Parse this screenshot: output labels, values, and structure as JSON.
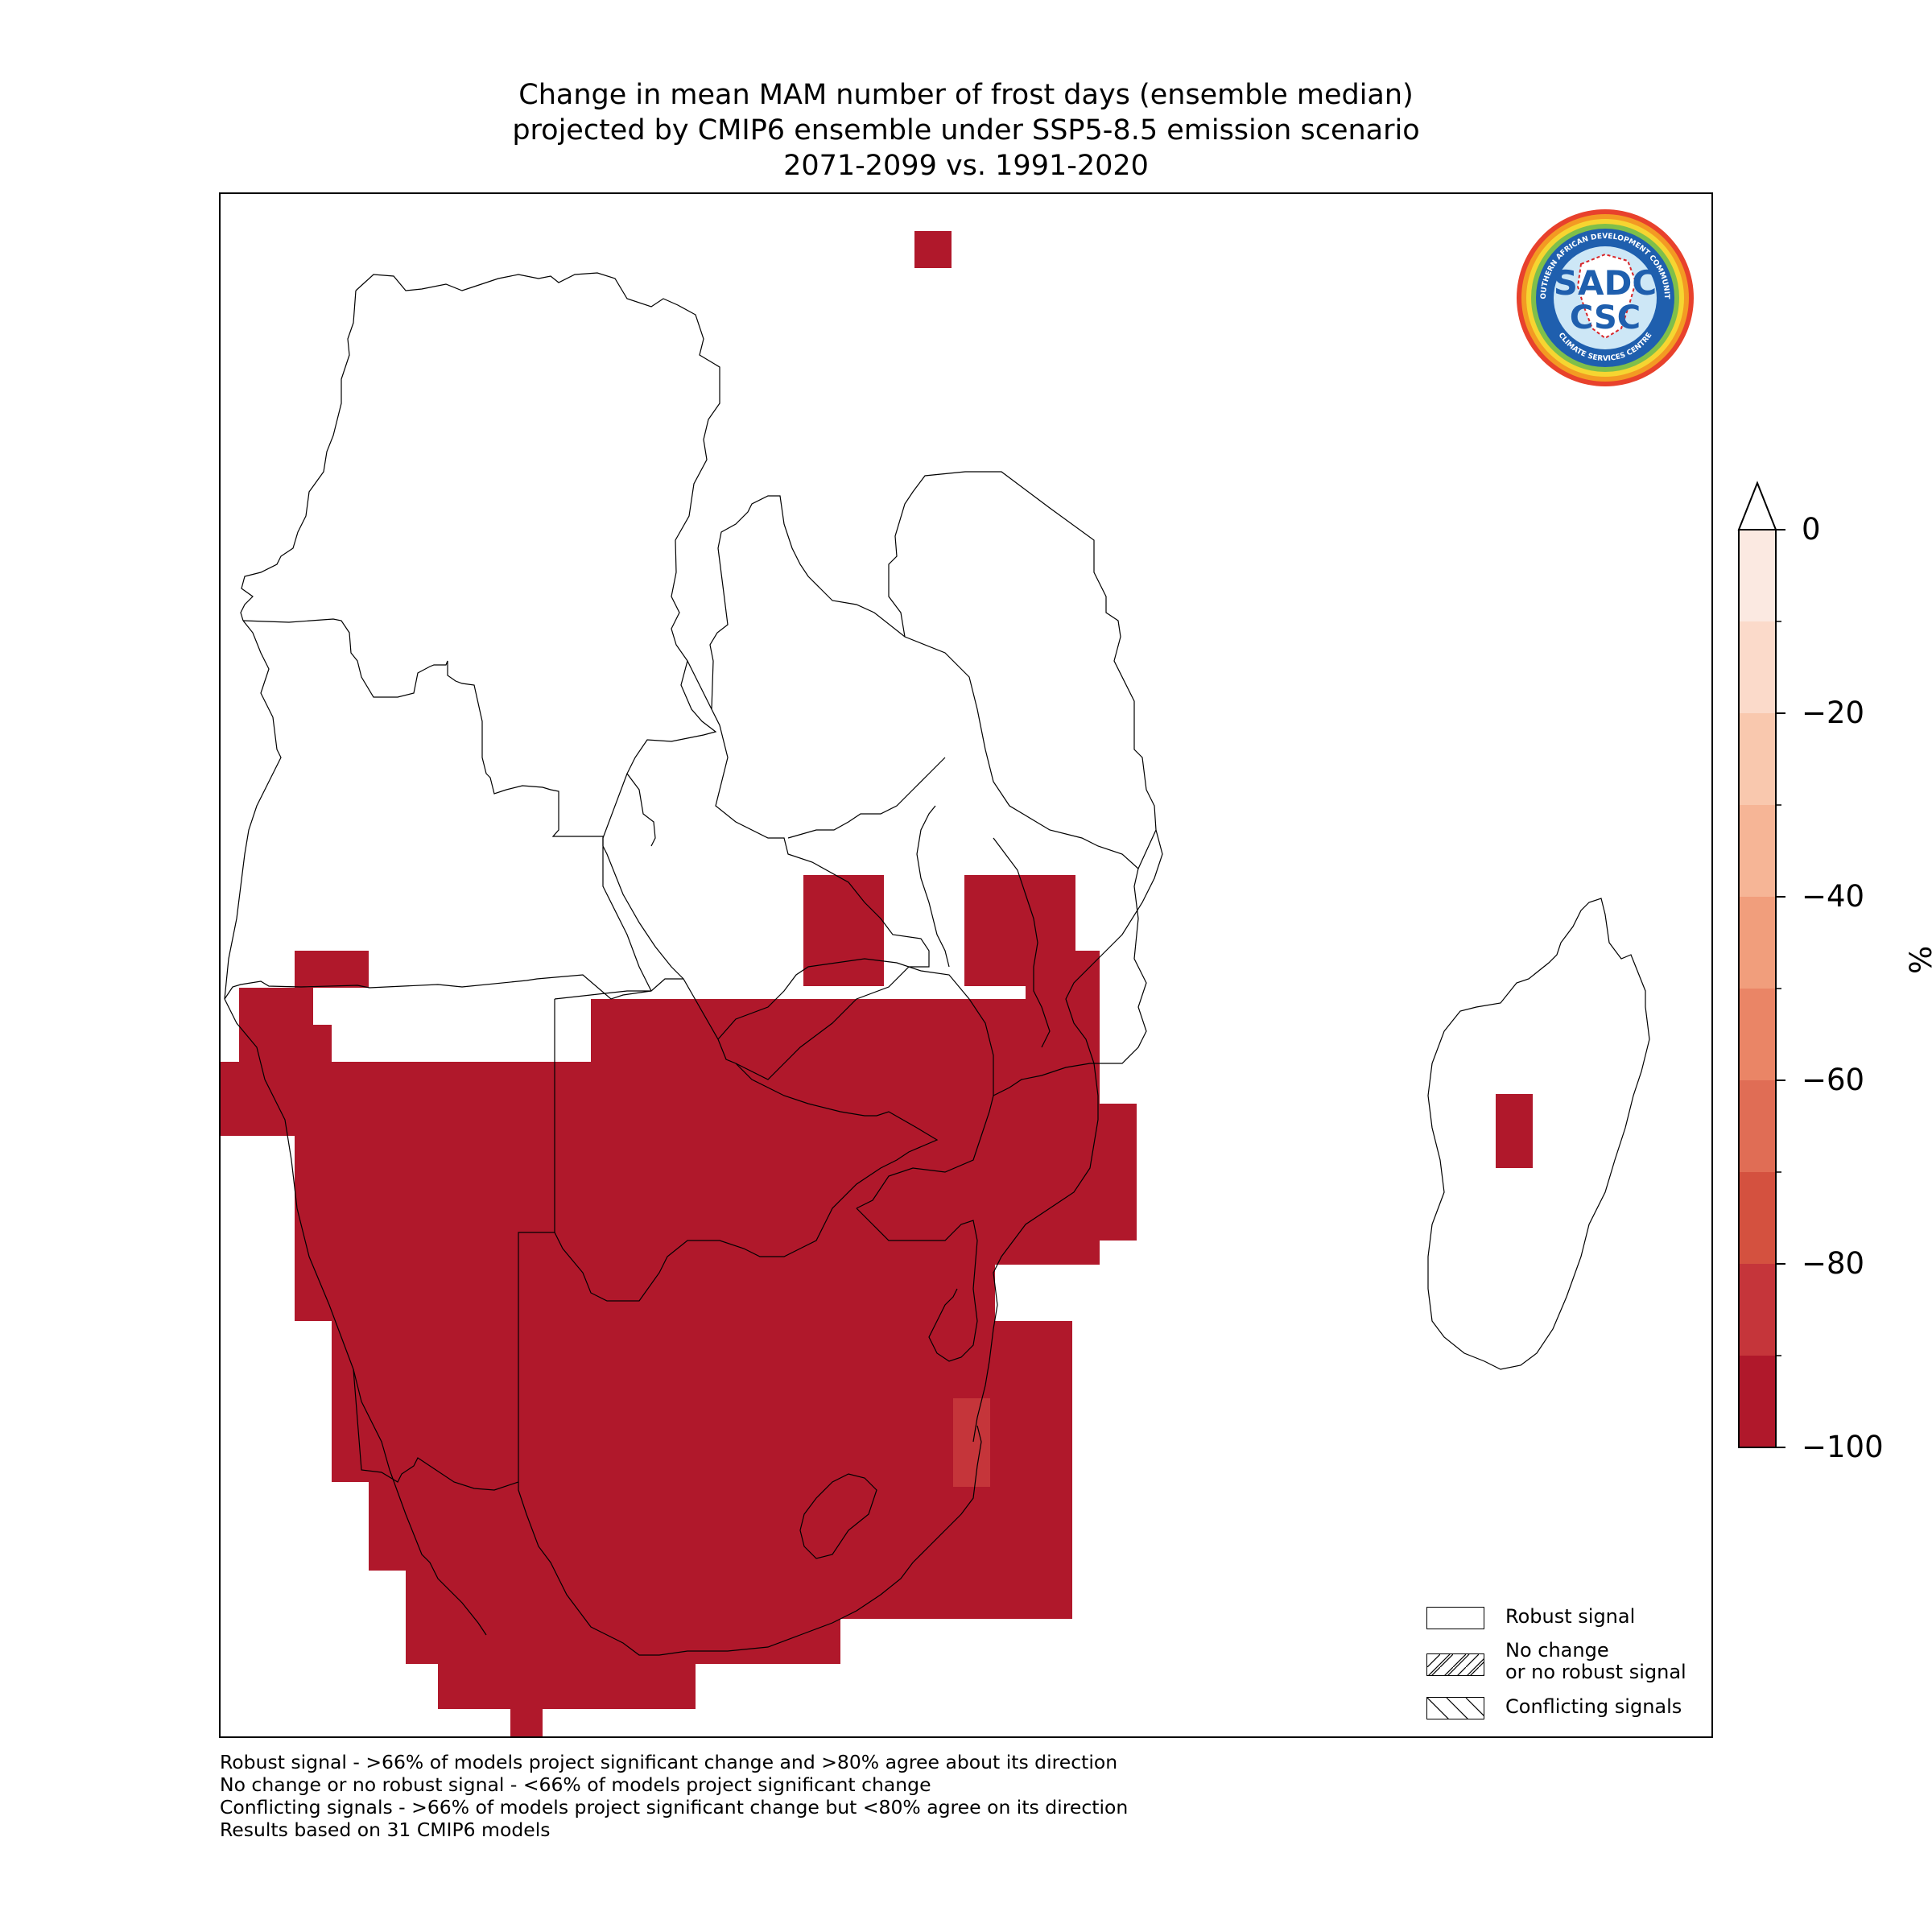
{
  "title": {
    "line1": "Change in mean MAM number of frost days (ensemble median)",
    "line2": "projected by CMIP6 ensemble under SSP5-8.5 emission scenario",
    "line3": "2071-2099 vs. 1991-2020"
  },
  "logo": {
    "ring_text_top": "SOUTHERN AFRICAN DEVELOPMENT COMMUNITY",
    "ring_text_bottom": "CLIMATE SERVICES CENTRE",
    "mark_top": "SADC",
    "mark_bottom": "CSC"
  },
  "legend": {
    "robust": "Robust signal",
    "no_change_line1": "No change",
    "no_change_line2": "or no robust signal",
    "conflicting": "Conflicting signals"
  },
  "footnotes": [
    "Robust signal - >66% of models project significant change and >80% agree about its direction",
    "No change or no robust signal - <66% of models project significant change",
    "Conflicting signals - >66% of models project significant change but <80% agree on its direction",
    "Results based on 31 CMIP6 models"
  ],
  "colorbar": {
    "unit": "%",
    "ticks": [
      "0",
      "−20",
      "−40",
      "−60",
      "−80",
      "−100"
    ],
    "extend": "max",
    "bins": [
      {
        "from": -100,
        "to": -90,
        "color": "#b0182b"
      },
      {
        "from": -90,
        "to": -80,
        "color": "#c5353a"
      },
      {
        "from": -80,
        "to": -70,
        "color": "#d4513f"
      },
      {
        "from": -70,
        "to": -60,
        "color": "#e06d55"
      },
      {
        "from": -60,
        "to": -50,
        "color": "#ea8566"
      },
      {
        "from": -50,
        "to": -40,
        "color": "#f19e7c"
      },
      {
        "from": -40,
        "to": -30,
        "color": "#f6b596"
      },
      {
        "from": -30,
        "to": -20,
        "color": "#f9c8ae"
      },
      {
        "from": -20,
        "to": -10,
        "color": "#fbdaca"
      },
      {
        "from": -10,
        "to": 0,
        "color": "#fbe9e1"
      }
    ]
  },
  "map_data": {
    "description_colors": {
      "full_decrease": "#b0182b",
      "strong_decrease": "#c5353a"
    },
    "regions": [
      "DR Congo",
      "Angola",
      "Zambia",
      "Tanzania",
      "Malawi",
      "Mozambique",
      "Zimbabwe",
      "Namibia",
      "Botswana",
      "South Africa",
      "Lesotho",
      "Eswatini",
      "Madagascar"
    ]
  }
}
